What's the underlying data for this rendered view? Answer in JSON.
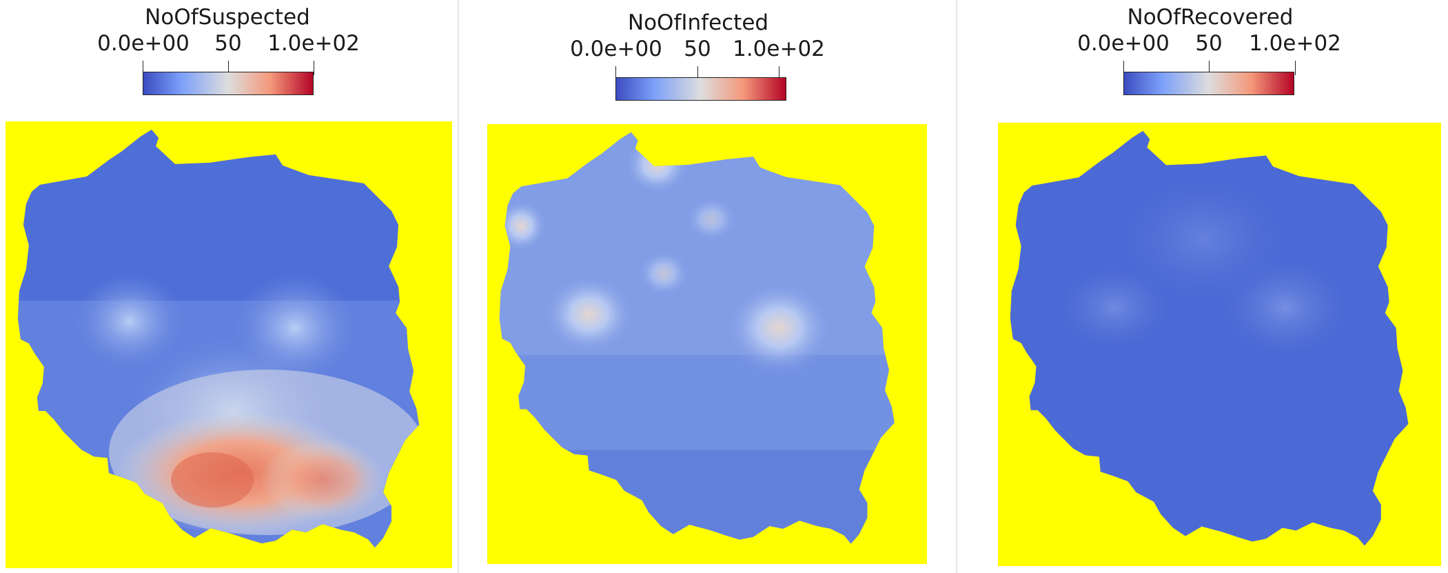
{
  "colors": {
    "background": "#ffff00",
    "low": "#3b4cc0",
    "mid": "#dddddd",
    "high": "#b40426"
  },
  "colorscale": {
    "name": "coolwarm",
    "min": 0,
    "max": 100,
    "tick_labels": [
      "0.0e+00",
      "50",
      "1.0e+02"
    ]
  },
  "panels": [
    {
      "title": "NoOfSuspected",
      "dominant_level": "low-to-high",
      "hotspot": "south"
    },
    {
      "title": "NoOfInfected",
      "dominant_level": "low-to-mid",
      "hotspot": "none"
    },
    {
      "title": "NoOfRecovered",
      "dominant_level": "low",
      "hotspot": "none"
    }
  ]
}
